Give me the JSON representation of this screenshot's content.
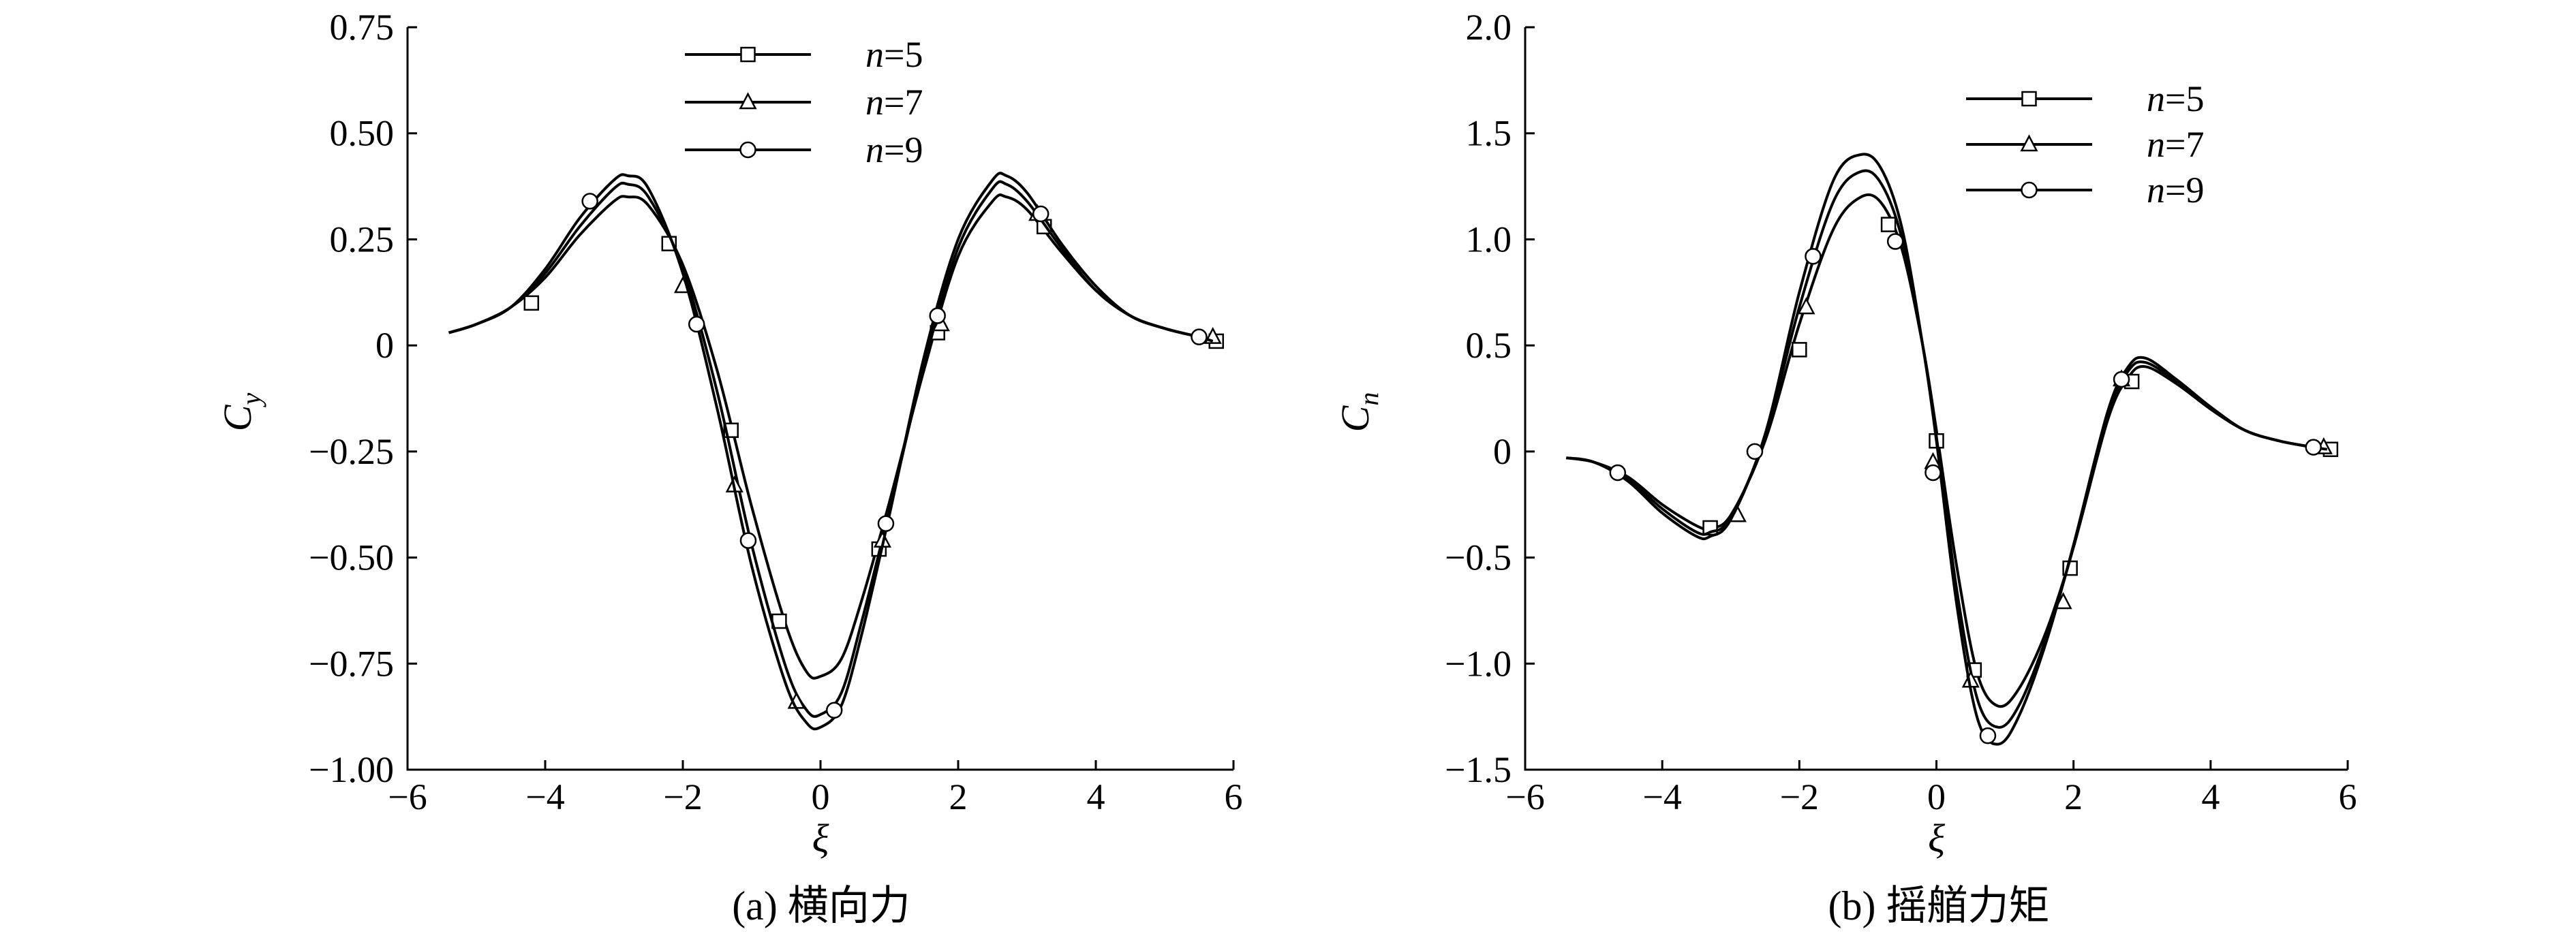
{
  "chart_data": [
    {
      "type": "line",
      "caption": "(a) 横向力",
      "xlabel": "ξ",
      "ylabel": "C_y",
      "xlim": [
        -6,
        6
      ],
      "ylim": [
        -1.0,
        0.75
      ],
      "xticks": [
        -6,
        -4,
        -2,
        0,
        2,
        4,
        6
      ],
      "xtick_labels": [
        "−6",
        "−4",
        "−2",
        "0",
        "2",
        "4",
        "6"
      ],
      "yticks": [
        -1.0,
        -0.75,
        -0.5,
        -0.25,
        0,
        0.25,
        0.5,
        0.75
      ],
      "ytick_labels": [
        "−1.00",
        "−0.75",
        "−0.50",
        "−0.25",
        "0",
        "0.25",
        "0.50",
        "0.75"
      ],
      "legend_position": "top-center",
      "series": [
        {
          "name": "n=5",
          "label_italic": "n",
          "label_rest": "=5",
          "marker": "square",
          "x": [
            -5.4,
            -5.0,
            -4.5,
            -4.0,
            -3.5,
            -3.0,
            -2.8,
            -2.5,
            -2.0,
            -1.5,
            -1.0,
            -0.5,
            -0.2,
            0.0,
            0.3,
            0.6,
            1.0,
            1.5,
            2.0,
            2.5,
            2.7,
            3.0,
            3.5,
            4.0,
            4.5,
            5.0,
            5.5,
            5.7
          ],
          "y": [
            0.03,
            0.05,
            0.09,
            0.16,
            0.26,
            0.34,
            0.35,
            0.33,
            0.19,
            -0.06,
            -0.38,
            -0.66,
            -0.77,
            -0.78,
            -0.74,
            -0.6,
            -0.37,
            -0.06,
            0.21,
            0.34,
            0.35,
            0.32,
            0.22,
            0.13,
            0.07,
            0.04,
            0.02,
            0.01
          ],
          "marker_x": [
            -4.2,
            -2.2,
            -1.3,
            -0.6,
            0.85,
            1.7,
            3.25,
            5.75
          ],
          "marker_y": [
            0.1,
            0.24,
            -0.2,
            -0.65,
            -0.48,
            0.03,
            0.28,
            0.01
          ]
        },
        {
          "name": "n=7",
          "label_italic": "n",
          "label_rest": "=7",
          "marker": "triangle",
          "x": [
            -5.4,
            -5.0,
            -4.5,
            -4.0,
            -3.5,
            -3.0,
            -2.8,
            -2.5,
            -2.0,
            -1.5,
            -1.0,
            -0.5,
            -0.2,
            0.0,
            0.3,
            0.6,
            1.0,
            1.5,
            2.0,
            2.5,
            2.7,
            3.0,
            3.5,
            4.0,
            4.5,
            5.0,
            5.5,
            5.7
          ],
          "y": [
            0.03,
            0.05,
            0.09,
            0.17,
            0.28,
            0.37,
            0.38,
            0.35,
            0.18,
            -0.11,
            -0.47,
            -0.76,
            -0.86,
            -0.87,
            -0.82,
            -0.65,
            -0.39,
            -0.05,
            0.23,
            0.37,
            0.38,
            0.34,
            0.23,
            0.13,
            0.07,
            0.04,
            0.02,
            0.01
          ],
          "marker_x": [
            -2.0,
            -1.25,
            -0.35,
            0.9,
            1.75,
            3.15,
            5.7
          ],
          "marker_y": [
            0.14,
            -0.33,
            -0.84,
            -0.46,
            0.05,
            0.31,
            0.02
          ]
        },
        {
          "name": "n=9",
          "label_italic": "n",
          "label_rest": "=9",
          "marker": "circle",
          "x": [
            -5.4,
            -5.0,
            -4.5,
            -4.0,
            -3.5,
            -3.0,
            -2.8,
            -2.5,
            -2.0,
            -1.5,
            -1.0,
            -0.5,
            -0.2,
            0.0,
            0.3,
            0.6,
            1.0,
            1.5,
            2.0,
            2.5,
            2.7,
            3.0,
            3.5,
            4.0,
            4.5,
            5.0,
            5.5,
            5.7
          ],
          "y": [
            0.03,
            0.05,
            0.09,
            0.18,
            0.3,
            0.39,
            0.4,
            0.37,
            0.17,
            -0.15,
            -0.52,
            -0.8,
            -0.89,
            -0.9,
            -0.85,
            -0.68,
            -0.4,
            -0.03,
            0.25,
            0.39,
            0.4,
            0.36,
            0.24,
            0.14,
            0.07,
            0.04,
            0.02,
            0.01
          ],
          "marker_x": [
            -3.35,
            -1.8,
            -1.05,
            0.2,
            0.95,
            1.7,
            3.2,
            5.5
          ],
          "marker_y": [
            0.34,
            0.05,
            -0.46,
            -0.86,
            -0.42,
            0.07,
            0.31,
            0.02
          ]
        }
      ]
    },
    {
      "type": "line",
      "caption": "(b) 摇艏力矩",
      "xlabel": "ξ",
      "ylabel": "C_n",
      "xlim": [
        -6,
        6
      ],
      "ylim": [
        -1.5,
        2.0
      ],
      "xticks": [
        -6,
        -4,
        -2,
        0,
        2,
        4,
        6
      ],
      "xtick_labels": [
        "−6",
        "−4",
        "−2",
        "0",
        "2",
        "4",
        "6"
      ],
      "yticks": [
        -1.5,
        -1.0,
        -0.5,
        0,
        0.5,
        1.0,
        1.5,
        2.0
      ],
      "ytick_labels": [
        "−1.5",
        "−1.0",
        "−0.5",
        "0",
        "0.5",
        "1.0",
        "1.5",
        "2.0"
      ],
      "legend_position": "top-right",
      "series": [
        {
          "name": "n=5",
          "label_italic": "n",
          "label_rest": "=5",
          "marker": "square",
          "x": [
            -5.4,
            -5.0,
            -4.5,
            -4.0,
            -3.5,
            -3.3,
            -3.0,
            -2.5,
            -2.0,
            -1.5,
            -1.1,
            -0.8,
            -0.5,
            -0.2,
            0.0,
            0.3,
            0.6,
            0.9,
            1.2,
            1.6,
            2.0,
            2.5,
            2.8,
            3.05,
            3.5,
            4.0,
            4.5,
            5.0,
            5.5,
            5.7
          ],
          "y": [
            -0.03,
            -0.05,
            -0.12,
            -0.25,
            -0.35,
            -0.36,
            -0.3,
            0.05,
            0.6,
            1.05,
            1.2,
            1.17,
            0.95,
            0.5,
            0.1,
            -0.55,
            -1.05,
            -1.2,
            -1.12,
            -0.85,
            -0.45,
            0.15,
            0.35,
            0.4,
            0.32,
            0.2,
            0.1,
            0.05,
            0.02,
            0.01
          ],
          "marker_x": [
            -3.3,
            -2.0,
            -0.7,
            0.0,
            0.55,
            1.95,
            2.85,
            5.75
          ],
          "marker_y": [
            -0.36,
            0.48,
            1.07,
            0.05,
            -1.03,
            -0.55,
            0.33,
            0.01
          ]
        },
        {
          "name": "n=7",
          "label_italic": "n",
          "label_rest": "=7",
          "marker": "triangle",
          "x": [
            -5.4,
            -5.0,
            -4.5,
            -4.0,
            -3.5,
            -3.3,
            -3.0,
            -2.5,
            -2.0,
            -1.5,
            -1.1,
            -0.8,
            -0.5,
            -0.2,
            0.0,
            0.3,
            0.6,
            0.9,
            1.2,
            1.6,
            2.0,
            2.5,
            2.8,
            3.05,
            3.5,
            4.0,
            4.5,
            5.0,
            5.5,
            5.7
          ],
          "y": [
            -0.03,
            -0.05,
            -0.13,
            -0.27,
            -0.38,
            -0.38,
            -0.31,
            0.07,
            0.68,
            1.18,
            1.32,
            1.26,
            1.0,
            0.5,
            0.07,
            -0.66,
            -1.17,
            -1.3,
            -1.2,
            -0.88,
            -0.45,
            0.17,
            0.38,
            0.42,
            0.33,
            0.2,
            0.1,
            0.05,
            0.02,
            0.01
          ],
          "marker_x": [
            -2.9,
            -1.9,
            -0.05,
            0.5,
            1.85,
            2.7,
            5.65
          ],
          "marker_y": [
            -0.3,
            0.68,
            -0.05,
            -1.08,
            -0.71,
            0.34,
            0.02
          ]
        },
        {
          "name": "n=9",
          "label_italic": "n",
          "label_rest": "=9",
          "marker": "circle",
          "x": [
            -5.4,
            -5.0,
            -4.5,
            -4.0,
            -3.5,
            -3.3,
            -3.0,
            -2.5,
            -2.0,
            -1.5,
            -1.1,
            -0.8,
            -0.5,
            -0.2,
            0.0,
            0.3,
            0.6,
            0.9,
            1.2,
            1.6,
            2.0,
            2.5,
            2.8,
            3.05,
            3.5,
            4.0,
            4.5,
            5.0,
            5.5,
            5.7
          ],
          "y": [
            -0.03,
            -0.05,
            -0.14,
            -0.29,
            -0.4,
            -0.4,
            -0.32,
            0.08,
            0.75,
            1.28,
            1.4,
            1.33,
            1.05,
            0.5,
            0.05,
            -0.73,
            -1.26,
            -1.38,
            -1.25,
            -0.9,
            -0.44,
            0.19,
            0.4,
            0.44,
            0.34,
            0.21,
            0.1,
            0.05,
            0.02,
            0.01
          ],
          "marker_x": [
            -4.65,
            -2.65,
            -1.8,
            -0.6,
            -0.05,
            0.75,
            2.7,
            5.5
          ],
          "marker_y": [
            -0.1,
            0.0,
            0.92,
            0.99,
            -0.1,
            -1.34,
            0.34,
            0.02
          ]
        }
      ]
    }
  ]
}
